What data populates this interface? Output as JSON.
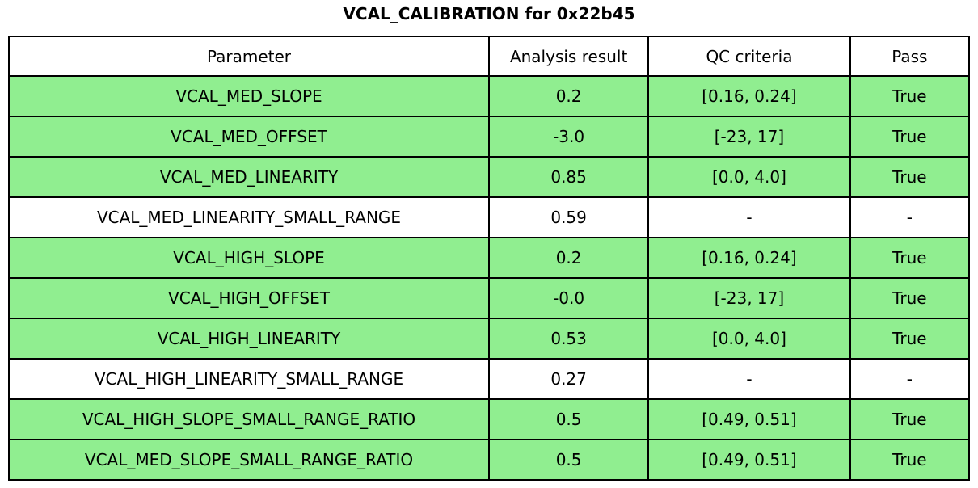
{
  "header": {
    "title": "VCAL_CALIBRATION for 0x22b45"
  },
  "colors": {
    "pass_row": "#90EE90",
    "neutral_row": "#FFFFFF",
    "border": "#000000",
    "text": "#000000"
  },
  "table": {
    "columns": [
      {
        "label": "Parameter"
      },
      {
        "label": "Analysis result"
      },
      {
        "label": "QC criteria"
      },
      {
        "label": "Pass"
      }
    ],
    "rows": [
      {
        "parameter": "VCAL_MED_SLOPE",
        "analysis_result": "0.2",
        "qc_criteria": "[0.16, 0.24]",
        "pass": "True",
        "highlighted": true
      },
      {
        "parameter": "VCAL_MED_OFFSET",
        "analysis_result": "-3.0",
        "qc_criteria": "[-23, 17]",
        "pass": "True",
        "highlighted": true
      },
      {
        "parameter": "VCAL_MED_LINEARITY",
        "analysis_result": "0.85",
        "qc_criteria": "[0.0, 4.0]",
        "pass": "True",
        "highlighted": true
      },
      {
        "parameter": "VCAL_MED_LINEARITY_SMALL_RANGE",
        "analysis_result": "0.59",
        "qc_criteria": "-",
        "pass": "-",
        "highlighted": false
      },
      {
        "parameter": "VCAL_HIGH_SLOPE",
        "analysis_result": "0.2",
        "qc_criteria": "[0.16, 0.24]",
        "pass": "True",
        "highlighted": true
      },
      {
        "parameter": "VCAL_HIGH_OFFSET",
        "analysis_result": "-0.0",
        "qc_criteria": "[-23, 17]",
        "pass": "True",
        "highlighted": true
      },
      {
        "parameter": "VCAL_HIGH_LINEARITY",
        "analysis_result": "0.53",
        "qc_criteria": "[0.0, 4.0]",
        "pass": "True",
        "highlighted": true
      },
      {
        "parameter": "VCAL_HIGH_LINEARITY_SMALL_RANGE",
        "analysis_result": "0.27",
        "qc_criteria": "-",
        "pass": "-",
        "highlighted": false
      },
      {
        "parameter": "VCAL_HIGH_SLOPE_SMALL_RANGE_RATIO",
        "analysis_result": "0.5",
        "qc_criteria": "[0.49, 0.51]",
        "pass": "True",
        "highlighted": true
      },
      {
        "parameter": "VCAL_MED_SLOPE_SMALL_RANGE_RATIO",
        "analysis_result": "0.5",
        "qc_criteria": "[0.49, 0.51]",
        "pass": "True",
        "highlighted": true
      }
    ]
  },
  "chart_data": {
    "type": "table",
    "title": "VCAL_CALIBRATION for 0x22b45",
    "columns": [
      "Parameter",
      "Analysis result",
      "QC criteria",
      "Pass"
    ],
    "rows": [
      [
        "VCAL_MED_SLOPE",
        "0.2",
        "[0.16, 0.24]",
        "True"
      ],
      [
        "VCAL_MED_OFFSET",
        "-3.0",
        "[-23, 17]",
        "True"
      ],
      [
        "VCAL_MED_LINEARITY",
        "0.85",
        "[0.0, 4.0]",
        "True"
      ],
      [
        "VCAL_MED_LINEARITY_SMALL_RANGE",
        "0.59",
        "-",
        "-"
      ],
      [
        "VCAL_HIGH_SLOPE",
        "0.2",
        "[0.16, 0.24]",
        "True"
      ],
      [
        "VCAL_HIGH_OFFSET",
        "-0.0",
        "[-23, 17]",
        "True"
      ],
      [
        "VCAL_HIGH_LINEARITY",
        "0.53",
        "[0.0, 4.0]",
        "True"
      ],
      [
        "VCAL_HIGH_LINEARITY_SMALL_RANGE",
        "0.27",
        "-",
        "-"
      ],
      [
        "VCAL_HIGH_SLOPE_SMALL_RANGE_RATIO",
        "0.5",
        "[0.49, 0.51]",
        "True"
      ],
      [
        "VCAL_MED_SLOPE_SMALL_RANGE_RATIO",
        "0.5",
        "[0.49, 0.51]",
        "True"
      ]
    ],
    "highlighted_rows": [
      0,
      1,
      2,
      4,
      5,
      6,
      8,
      9
    ],
    "highlight_color": "#90EE90",
    "layout": "title top-center bold; bordered grid table below; all cells center-aligned"
  }
}
